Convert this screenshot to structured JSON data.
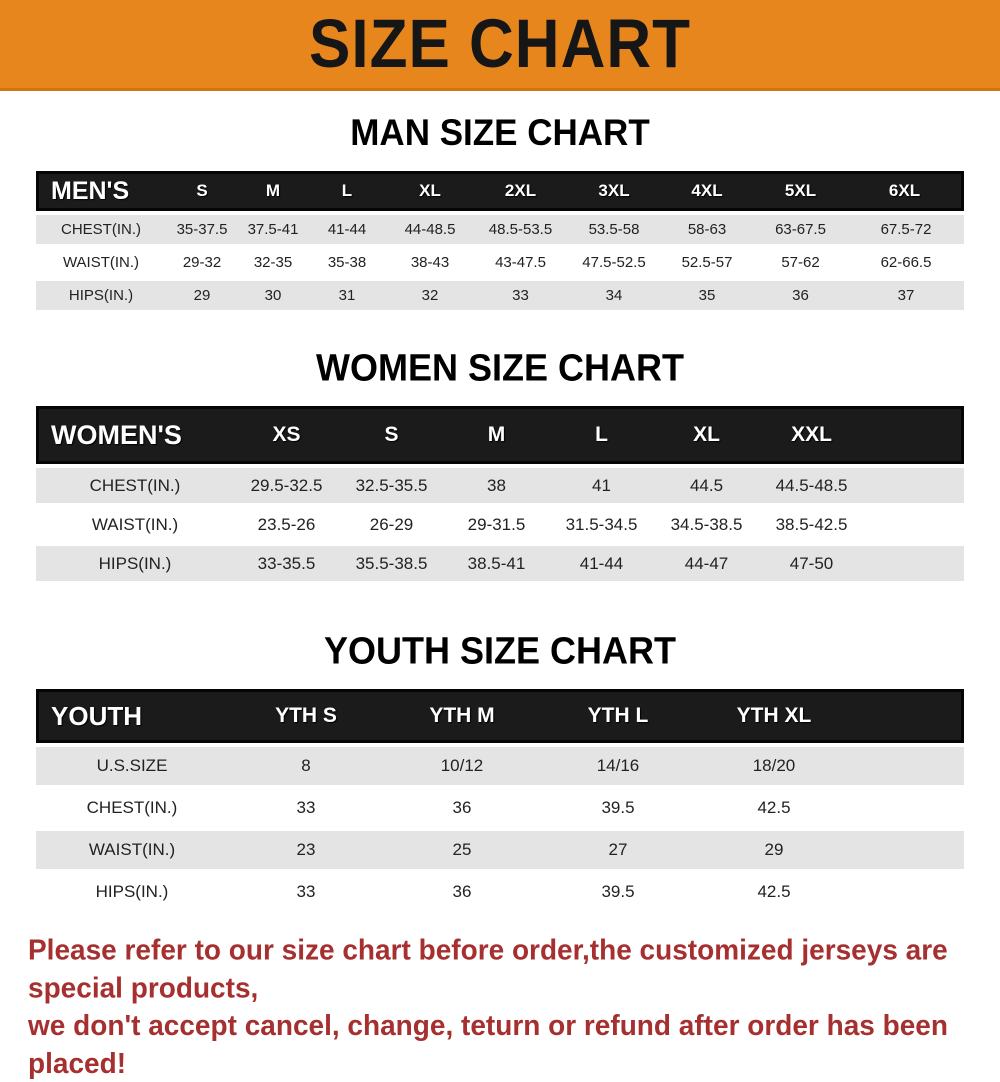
{
  "banner": {
    "title": "SIZE CHART",
    "bg_color": "#E8861E"
  },
  "colors": {
    "banner_orange": "#E8861E",
    "table_header_black": "#1b1b1b",
    "row_gray": "#E4E4E4",
    "footer_red": "#A63030"
  },
  "men": {
    "heading": "MAN SIZE CHART",
    "header": [
      "MEN'S",
      "S",
      "M",
      "L",
      "XL",
      "2XL",
      "3XL",
      "4XL",
      "5XL",
      "6XL"
    ],
    "rows": [
      [
        "CHEST(IN.)",
        "35-37.5",
        "37.5-41",
        "41-44",
        "44-48.5",
        "48.5-53.5",
        "53.5-58",
        "58-63",
        "63-67.5",
        "67.5-72"
      ],
      [
        "WAIST(IN.)",
        "29-32",
        "32-35",
        "35-38",
        "38-43",
        "43-47.5",
        "47.5-52.5",
        "52.5-57",
        "57-62",
        "62-66.5"
      ],
      [
        "HIPS(IN.)",
        "29",
        "30",
        "31",
        "32",
        "33",
        "34",
        "35",
        "36",
        "37"
      ]
    ]
  },
  "women": {
    "heading": "WOMEN SIZE CHART",
    "header": [
      "WOMEN'S",
      "XS",
      "S",
      "M",
      "L",
      "XL",
      "XXL"
    ],
    "rows": [
      [
        "CHEST(IN.)",
        "29.5-32.5",
        "32.5-35.5",
        "38",
        "41",
        "44.5",
        "44.5-48.5"
      ],
      [
        "WAIST(IN.)",
        "23.5-26",
        "26-29",
        "29-31.5",
        "31.5-34.5",
        "34.5-38.5",
        "38.5-42.5"
      ],
      [
        "HIPS(IN.)",
        "33-35.5",
        "35.5-38.5",
        "38.5-41",
        "41-44",
        "44-47",
        "47-50"
      ]
    ]
  },
  "youth": {
    "heading": "YOUTH SIZE CHART",
    "header": [
      "YOUTH",
      "YTH S",
      "YTH M",
      "YTH L",
      "YTH XL"
    ],
    "rows": [
      [
        "U.S.SIZE",
        "8",
        "10/12",
        "14/16",
        "18/20"
      ],
      [
        "CHEST(IN.)",
        "33",
        "36",
        "39.5",
        "42.5"
      ],
      [
        "WAIST(IN.)",
        "23",
        "25",
        "27",
        "29"
      ],
      [
        "HIPS(IN.)",
        "33",
        "36",
        "39.5",
        "42.5"
      ]
    ]
  },
  "footer": {
    "line1": "Please refer to our size chart before order,the customized jerseys are special products,",
    "line2": "we don't accept cancel, change, teturn or refund after order has been placed!"
  }
}
